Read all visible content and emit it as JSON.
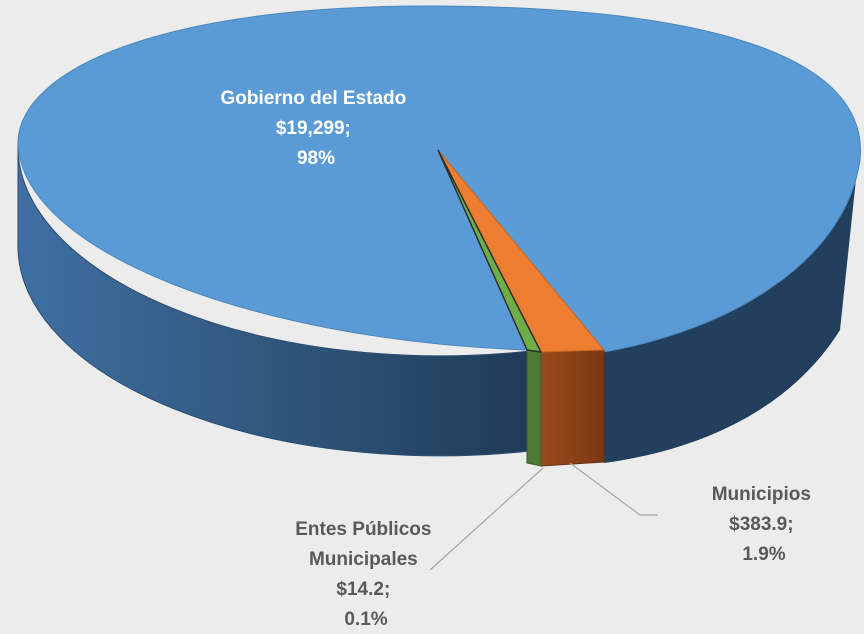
{
  "chart_data": {
    "type": "pie",
    "style": "3d",
    "slices": [
      {
        "category": "Gobierno del Estado",
        "value": 19299,
        "value_label": "$19,299;",
        "percent_label": "98%",
        "color": "#5b9bd5"
      },
      {
        "category": "Municipios",
        "value": 383.9,
        "value_label": "$383.9;",
        "percent_label": "1.9%",
        "color": "#ed7d31"
      },
      {
        "category": "Entes Públicos Municipales",
        "value": 14.2,
        "value_label": "$14.2;",
        "percent_label": "0.1%",
        "color": "#70ad47"
      }
    ],
    "labels": {
      "gobierno": {
        "lines": [
          "Gobierno del Estado",
          "$19,299;",
          "98%"
        ],
        "color": "#ffffff"
      },
      "municipios": {
        "lines": [
          "Municipios",
          "$383.9;",
          "1.9%"
        ],
        "color": "#595959"
      },
      "entes": {
        "lines": [
          "Entes Públicos",
          "Municipales",
          "$14.2;",
          "0.1%"
        ],
        "color": "#595959"
      }
    }
  }
}
